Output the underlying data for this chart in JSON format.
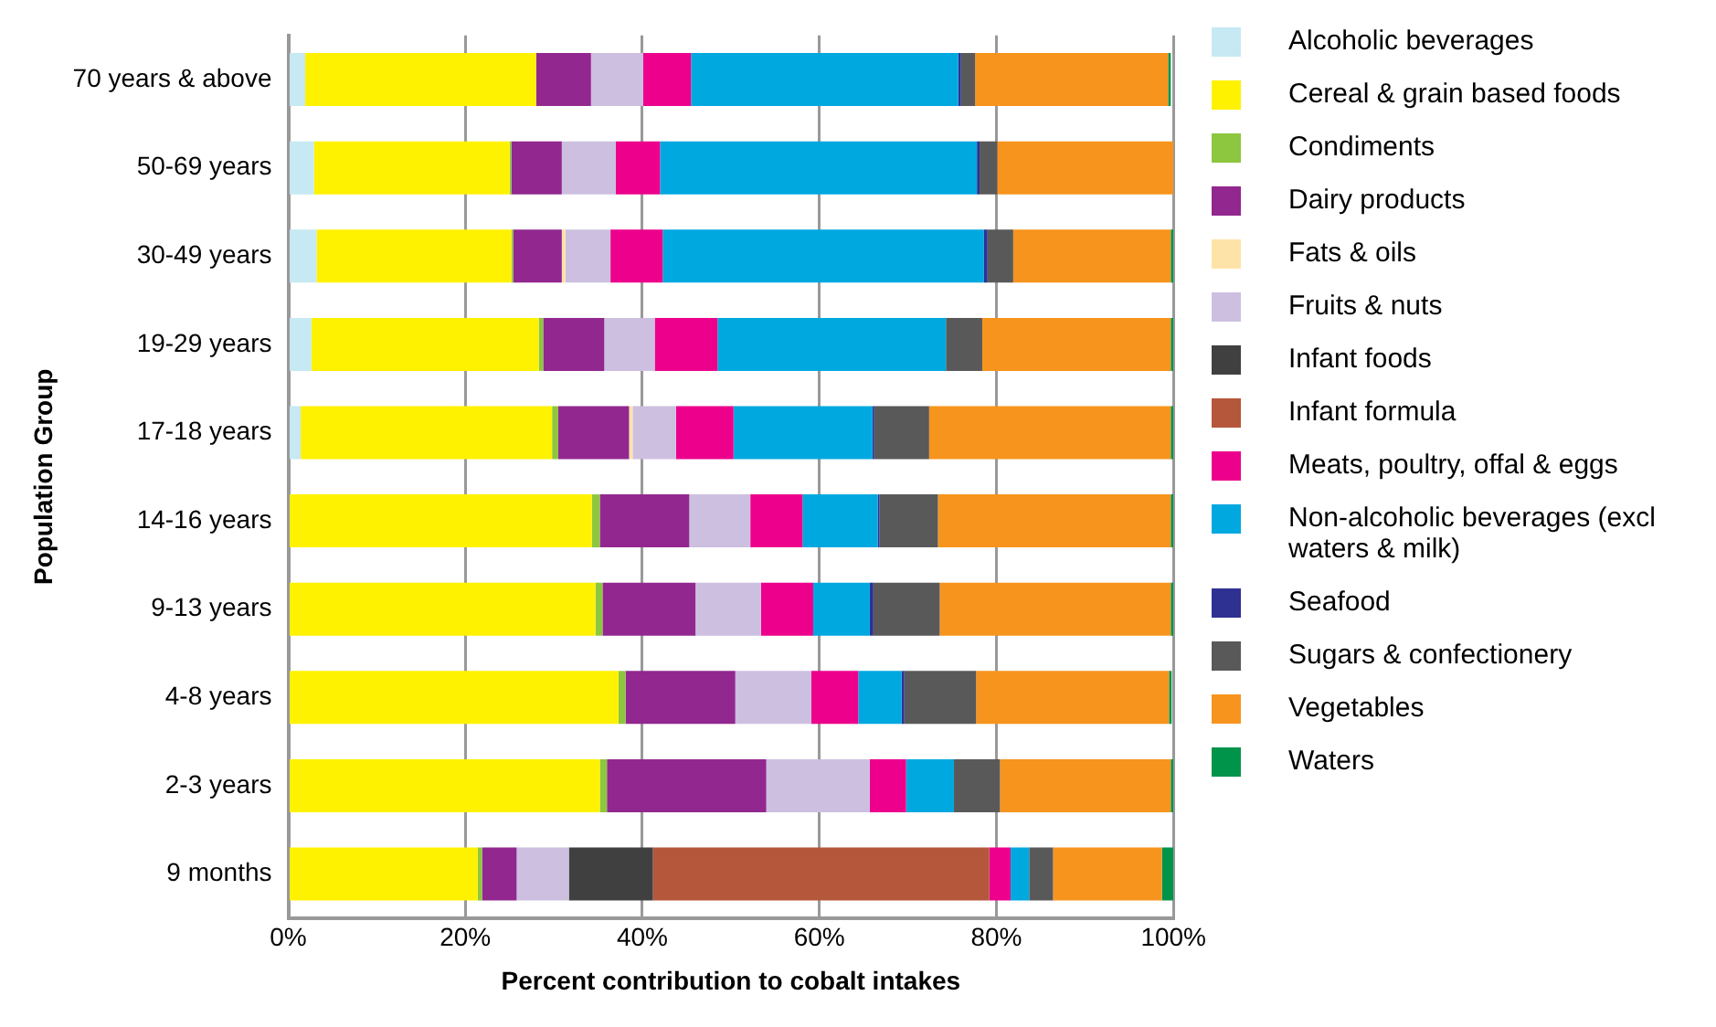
{
  "chart_data": {
    "type": "bar",
    "orientation": "horizontal",
    "stacked": true,
    "xlabel": "Percent contribution to cobalt intakes",
    "ylabel": "Population Group",
    "legend": "right",
    "grid": "x",
    "categories": [
      "70 years & above",
      "50-69 years",
      "30-49 years",
      "19-29 years",
      "17-18 years",
      "14-16 years",
      "9-13 years",
      "4-8 years",
      "2-3 years",
      "9 months"
    ],
    "xlim": [
      0,
      100
    ],
    "xticks": [
      {
        "value": 0,
        "label": "0%"
      },
      {
        "value": 20,
        "label": "20%"
      },
      {
        "value": 40,
        "label": "40%"
      },
      {
        "value": 60,
        "label": "60%"
      },
      {
        "value": 80,
        "label": "80%"
      },
      {
        "value": 100,
        "label": "100%"
      }
    ],
    "series": [
      {
        "name": "Alcoholic beverages",
        "color": "#c6e9f4",
        "values": [
          1.9,
          2.9,
          3.2,
          2.6,
          1.4,
          0,
          0,
          0,
          0,
          0
        ]
      },
      {
        "name": "Cereal & grain based foods",
        "color": "#fff200",
        "values": [
          26.1,
          22.1,
          22.0,
          25.7,
          28.4,
          34.3,
          34.7,
          37.3,
          35.2,
          21.4
        ]
      },
      {
        "name": "Condiments",
        "color": "#8dc63f",
        "values": [
          0,
          0.2,
          0.2,
          0.5,
          0.7,
          0.9,
          0.8,
          0.8,
          0.8,
          0.5
        ]
      },
      {
        "name": "Dairy products",
        "color": "#92278f",
        "values": [
          6.2,
          5.7,
          5.5,
          6.9,
          8.0,
          10.1,
          10.5,
          12.4,
          18.0,
          3.9
        ]
      },
      {
        "name": "Fats & oils",
        "color": "#fde3a7",
        "values": [
          null,
          0,
          0.4,
          0,
          0.4,
          0,
          0,
          null,
          0,
          0
        ]
      },
      {
        "name": "Fruits & nuts",
        "color": "#ccbfe0",
        "values": [
          5.9,
          6.1,
          5.1,
          5.7,
          4.9,
          6.9,
          7.4,
          8.6,
          11.7,
          5.9
        ]
      },
      {
        "name": "Infant foods",
        "color": "#404041",
        "values": [
          0,
          0,
          0,
          0,
          0,
          0,
          0,
          0,
          0,
          9.5
        ]
      },
      {
        "name": "Infant formula",
        "color": "#b5573a",
        "values": [
          0,
          0,
          0,
          0,
          0,
          0,
          0,
          0,
          0,
          38.0
        ]
      },
      {
        "name": "Meats, poultry, offal & eggs",
        "color": "#ec008c",
        "values": [
          5.4,
          5.0,
          5.9,
          7.1,
          6.5,
          5.9,
          5.9,
          5.3,
          4.1,
          2.4
        ]
      },
      {
        "name": "Non-alcoholic beverages (excl waters & milk)",
        "color": "#00a8e0",
        "values": [
          30.2,
          35.8,
          36.3,
          25.8,
          15.7,
          8.5,
          6.4,
          4.9,
          5.4,
          2.1
        ]
      },
      {
        "name": "Seafood",
        "color": "#2e3192",
        "values": [
          0.3,
          0.3,
          0.4,
          0,
          0.2,
          0.2,
          0.4,
          0.3,
          0,
          0
        ]
      },
      {
        "name": "Sugars & confectionery",
        "color": "#595959",
        "values": [
          1.6,
          2.0,
          2.9,
          4.1,
          6.2,
          6.6,
          7.5,
          8.1,
          5.2,
          2.7
        ]
      },
      {
        "name": "Vegetables",
        "color": "#f7941d",
        "values": [
          21.8,
          19.9,
          17.8,
          21.3,
          27.3,
          26.3,
          26.1,
          21.8,
          19.3,
          12.3
        ]
      },
      {
        "name": "Waters",
        "color": "#00934a",
        "values": [
          0.3,
          0,
          0.3,
          0.3,
          0.3,
          0.3,
          0.3,
          0.3,
          0.3,
          1.3
        ]
      }
    ]
  }
}
